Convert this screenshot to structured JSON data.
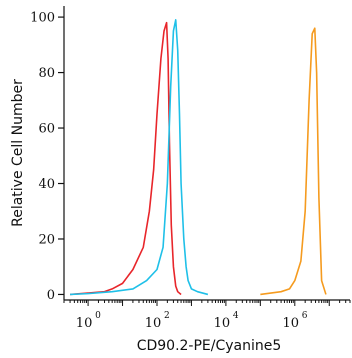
{
  "chart_data": {
    "type": "line",
    "xlabel": "CD90.2-PE/Cyanine5",
    "ylabel": "Relative Cell Number",
    "x_scale": "log",
    "xlim": [
      0.2,
      40000000
    ],
    "ylim": [
      -2,
      104
    ],
    "grid": false,
    "y_ticks": [
      0,
      20,
      40,
      60,
      80,
      100
    ],
    "x_ticks": [
      {
        "base": "10",
        "exp": "0",
        "value": 1
      },
      {
        "base": "10",
        "exp": "2",
        "value": 100
      },
      {
        "base": "10",
        "exp": "4",
        "value": 10000
      },
      {
        "base": "10",
        "exp": "6",
        "value": 1000000
      }
    ],
    "series": [
      {
        "color": "#e8262b",
        "x": [
          0.3,
          1,
          3,
          5,
          10,
          20,
          40,
          60,
          80,
          100,
          130,
          160,
          190,
          210,
          230,
          260,
          300,
          350,
          400,
          500
        ],
        "y": [
          0,
          0.5,
          1,
          2,
          4,
          9,
          17,
          30,
          45,
          65,
          85,
          95,
          98,
          85,
          55,
          25,
          10,
          3,
          1,
          0
        ]
      },
      {
        "color": "#1fc0e8",
        "x": [
          0.3,
          1,
          5,
          20,
          50,
          100,
          150,
          200,
          250,
          300,
          350,
          400,
          450,
          500,
          600,
          700,
          800,
          1000,
          1500,
          3000
        ],
        "y": [
          0,
          0.3,
          1,
          2,
          5,
          9,
          17,
          40,
          75,
          95,
          99,
          88,
          65,
          40,
          20,
          10,
          5,
          2,
          1,
          0
        ]
      },
      {
        "color": "#f59b1f",
        "x": [
          100000,
          200000,
          400000,
          700000,
          1000000,
          1500000,
          2000000,
          2600000,
          3200000,
          3800000,
          4300000,
          5000000,
          6000000,
          8000000
        ],
        "y": [
          0,
          0.5,
          1,
          2,
          5,
          12,
          30,
          70,
          94,
          96,
          80,
          35,
          5,
          0
        ]
      }
    ]
  }
}
